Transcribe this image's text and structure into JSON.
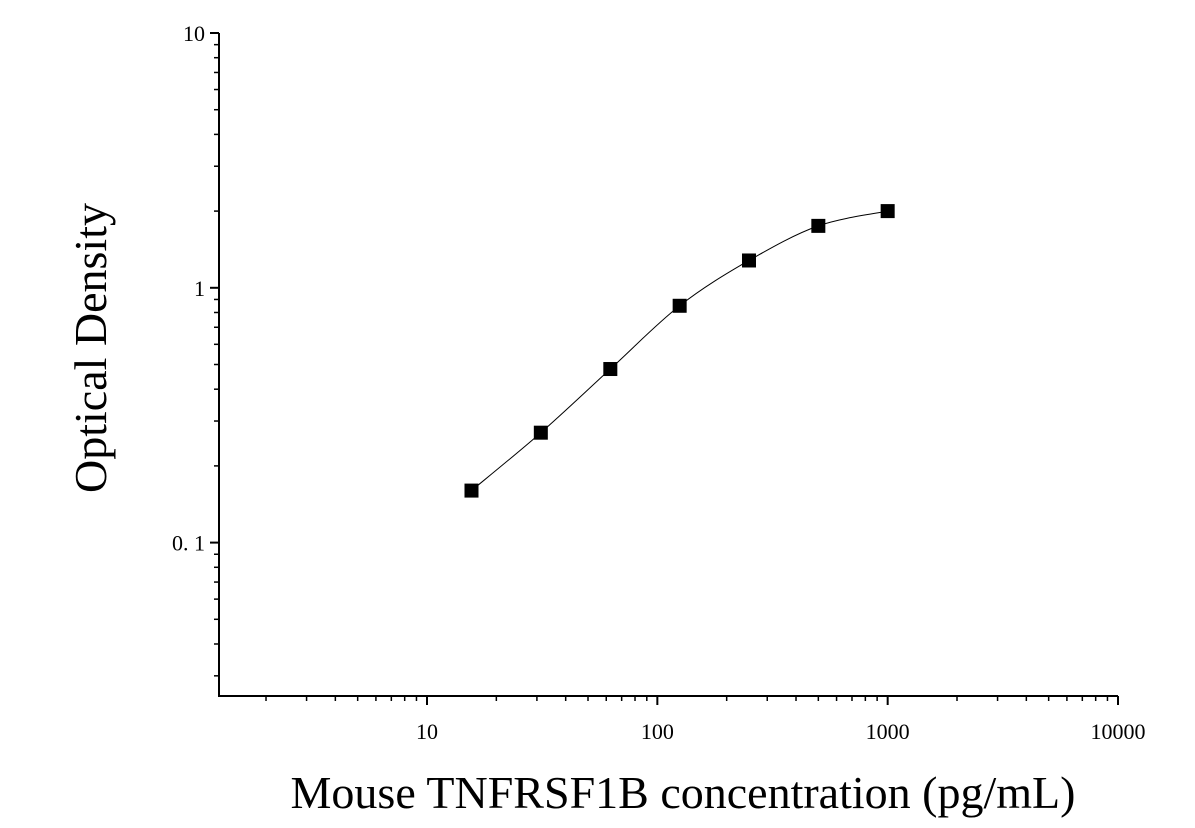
{
  "chart_data": {
    "type": "scatter",
    "title": "",
    "xlabel": "Mouse TNFRSF1B concentration (pg/mL)",
    "ylabel": "Optical Density",
    "x_scale": "log",
    "y_scale": "log",
    "xlim": [
      1.25,
      10000
    ],
    "ylim": [
      0.025,
      10
    ],
    "x_ticks": [
      10,
      100,
      1000,
      10000
    ],
    "x_tick_labels": [
      "10",
      "100",
      "1000",
      "10000"
    ],
    "y_ticks": [
      0.1,
      1,
      10
    ],
    "y_tick_labels": [
      "0. 1",
      "1",
      "10"
    ],
    "grid": false,
    "legend": "none",
    "marker": "square",
    "series": [
      {
        "x": [
          15.6,
          31.2,
          62.5,
          125,
          250,
          500,
          1000
        ],
        "y": [
          0.16,
          0.27,
          0.48,
          0.85,
          1.28,
          1.75,
          2.0
        ],
        "fit_curve": true
      }
    ],
    "colors": {
      "marker": "#000000",
      "line": "#000000",
      "axis": "#000000"
    }
  }
}
